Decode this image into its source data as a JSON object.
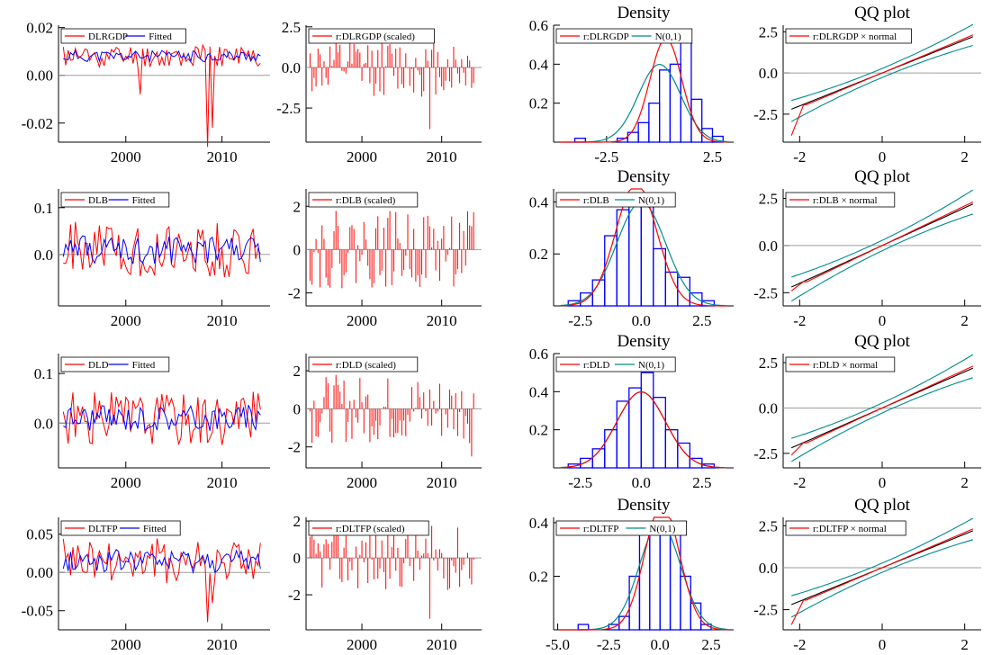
{
  "colors": {
    "red": "#ff0000",
    "blue": "#0000ff",
    "teal": "#008b8b",
    "black": "#000000",
    "gray": "#9e9e9e"
  },
  "chart_data": [
    {
      "type": "line",
      "panel": "fit",
      "xlim": [
        1993,
        2015
      ],
      "ylim": [
        -0.028,
        0.021
      ],
      "xticks": [
        2000,
        2010
      ],
      "yticks": [
        0.02,
        0.0,
        -0.02
      ],
      "ytick_labels": [
        "0.02",
        "0.00",
        "-0.02"
      ],
      "legend": [
        "DLRGDP",
        "Fitted"
      ],
      "seed": 11,
      "amp": 0.004,
      "center": 0.008,
      "dips": [
        [
          2008.5,
          -0.03
        ],
        [
          2009,
          -0.022
        ],
        [
          2001.5,
          -0.008
        ]
      ]
    },
    {
      "type": "bar",
      "panel": "resid",
      "xlim": [
        1993,
        2015
      ],
      "ylim": [
        -4.6,
        2.6
      ],
      "xticks": [
        2000,
        2010
      ],
      "yticks": [
        2.5,
        0.0,
        -2.5
      ],
      "ytick_labels": [
        "2.5",
        "0.0",
        "-2.5"
      ],
      "legend": [
        "r:DLRGDP (scaled)"
      ],
      "seed": 12,
      "spikes": [
        [
          2008.5,
          -3.8
        ]
      ]
    },
    {
      "type": "histogram",
      "panel": "density",
      "title": "Density",
      "xlim": [
        -5,
        3.5
      ],
      "ylim": [
        0,
        0.6
      ],
      "xticks": [
        -2.5,
        2.5
      ],
      "xtick_labels": [
        "-2.5",
        "2.5"
      ],
      "yticks": [
        0.6,
        0.4,
        0.2
      ],
      "ytick_labels": [
        "0.6",
        "0.4",
        "0.2"
      ],
      "legend": [
        "r:DLRGDP",
        "N(0,1)"
      ],
      "bins": [
        -4,
        -3.5,
        -3,
        -2.5,
        -2,
        -1.5,
        -1,
        -0.5,
        0,
        0.5,
        1,
        1.5,
        2,
        2.5,
        3
      ],
      "heights": [
        0.02,
        0,
        0,
        0,
        0.02,
        0.05,
        0.1,
        0.2,
        0.37,
        0.4,
        0.52,
        0.22,
        0.07,
        0.03
      ],
      "kde_sd": 0.75,
      "kde_mu": 0.3
    },
    {
      "type": "line",
      "panel": "qq",
      "title": "QQ plot",
      "xlim": [
        -2.4,
        2.4
      ],
      "ylim": [
        -4.2,
        2.9
      ],
      "xticks": [
        -2,
        0,
        2
      ],
      "xtick_labels": [
        "-2",
        "0",
        "2"
      ],
      "yticks": [
        2.5,
        0.0,
        -2.5
      ],
      "ytick_labels": [
        "2.5",
        "0.0",
        "-2.5"
      ],
      "legend": [
        "r:DLRGDP × normal"
      ],
      "lowtail": -3.7
    },
    {
      "type": "line",
      "panel": "fit",
      "xlim": [
        1993,
        2015
      ],
      "ylim": [
        -0.11,
        0.14
      ],
      "xticks": [
        2000,
        2010
      ],
      "yticks": [
        0.1,
        0.0
      ],
      "ytick_labels": [
        "0.1",
        "0.0"
      ],
      "legend": [
        "DLB",
        "Fitted"
      ],
      "seed": 21,
      "amp": 0.05,
      "center": 0.01,
      "dips": []
    },
    {
      "type": "bar",
      "panel": "resid",
      "xlim": [
        1993,
        2015
      ],
      "ylim": [
        -2.6,
        2.8
      ],
      "xticks": [
        2000,
        2010
      ],
      "yticks": [
        2,
        0,
        -2
      ],
      "ytick_labels": [
        "2",
        "0",
        "-2"
      ],
      "legend": [
        "r:DLB (scaled)"
      ],
      "seed": 22,
      "spikes": []
    },
    {
      "type": "histogram",
      "panel": "density",
      "title": "Density",
      "xlim": [
        -3.6,
        3.8
      ],
      "ylim": [
        0,
        0.45
      ],
      "xticks": [
        -2.5,
        0,
        2.5
      ],
      "xtick_labels": [
        "-2.5",
        "0.0",
        "2.5"
      ],
      "yticks": [
        0.4,
        0.2
      ],
      "ytick_labels": [
        "0.4",
        "0.2"
      ],
      "legend": [
        "r:DLB",
        "N(0,1)"
      ],
      "bins": [
        -3,
        -2.5,
        -2,
        -1.5,
        -1,
        -0.5,
        0,
        0.5,
        1,
        1.5,
        2,
        2.5,
        3
      ],
      "heights": [
        0.02,
        0.05,
        0.1,
        0.27,
        0.37,
        0.4,
        0.42,
        0.22,
        0.13,
        0.11,
        0.05,
        0.02
      ],
      "kde_sd": 0.85,
      "kde_mu": -0.2
    },
    {
      "type": "line",
      "panel": "qq",
      "title": "QQ plot",
      "xlim": [
        -2.4,
        2.4
      ],
      "ylim": [
        -3.2,
        3.0
      ],
      "xticks": [
        -2,
        0,
        2
      ],
      "xtick_labels": [
        "-2",
        "0",
        "2"
      ],
      "yticks": [
        2.5,
        0.0,
        -2.5
      ],
      "ytick_labels": [
        "2.5",
        "0.0",
        "-2.5"
      ],
      "legend": [
        "r:DLB × normal"
      ],
      "lowtail": -2.3
    },
    {
      "type": "line",
      "panel": "fit",
      "xlim": [
        1993,
        2015
      ],
      "ylim": [
        -0.09,
        0.14
      ],
      "xticks": [
        2000,
        2010
      ],
      "yticks": [
        0.1,
        0.0
      ],
      "ytick_labels": [
        "0.1",
        "0.0"
      ],
      "legend": [
        "DLD",
        "Fitted"
      ],
      "seed": 31,
      "amp": 0.045,
      "center": 0.01,
      "dips": []
    },
    {
      "type": "bar",
      "panel": "resid",
      "xlim": [
        1993,
        2015
      ],
      "ylim": [
        -3.1,
        2.9
      ],
      "xticks": [
        2000,
        2010
      ],
      "yticks": [
        2,
        0,
        -2
      ],
      "ytick_labels": [
        "2",
        "0",
        "-2"
      ],
      "legend": [
        "r:DLD (scaled)"
      ],
      "seed": 32,
      "spikes": [
        [
          2013.8,
          -2.5
        ]
      ]
    },
    {
      "type": "histogram",
      "panel": "density",
      "title": "Density",
      "xlim": [
        -3.6,
        3.8
      ],
      "ylim": [
        0,
        0.6
      ],
      "xticks": [
        -2.5,
        0,
        2.5
      ],
      "xtick_labels": [
        "-2.5",
        "0.0",
        "2.5"
      ],
      "yticks": [
        0.6,
        0.4,
        0.2
      ],
      "ytick_labels": [
        "0.6",
        "0.4",
        "0.2"
      ],
      "legend": [
        "r:DLD",
        "N(0,1)"
      ],
      "bins": [
        -3,
        -2.5,
        -2,
        -1.5,
        -1,
        -0.5,
        0,
        0.5,
        1,
        1.5,
        2,
        2.5,
        3
      ],
      "heights": [
        0.02,
        0.05,
        0.1,
        0.2,
        0.35,
        0.42,
        0.5,
        0.37,
        0.2,
        0.13,
        0.05,
        0.02
      ],
      "kde_sd": 1.0,
      "kde_mu": 0.0
    },
    {
      "type": "line",
      "panel": "qq",
      "title": "QQ plot",
      "xlim": [
        -2.4,
        2.4
      ],
      "ylim": [
        -3.3,
        3.0
      ],
      "xticks": [
        -2,
        0,
        2
      ],
      "xtick_labels": [
        "-2",
        "0",
        "2"
      ],
      "yticks": [
        2.5,
        0.0,
        -2.5
      ],
      "ytick_labels": [
        "2.5",
        "0.0",
        "-2.5"
      ],
      "legend": [
        "r:DLD × normal"
      ],
      "lowtail": -2.5
    },
    {
      "type": "line",
      "panel": "fit",
      "xlim": [
        1993,
        2015
      ],
      "ylim": [
        -0.075,
        0.072
      ],
      "xticks": [
        2000,
        2010
      ],
      "yticks": [
        0.05,
        0.0,
        -0.05
      ],
      "ytick_labels": [
        "0.05",
        "0.00",
        "-0.05"
      ],
      "legend": [
        "DLTFP",
        "Fitted"
      ],
      "seed": 41,
      "amp": 0.025,
      "center": 0.015,
      "dips": [
        [
          2008.5,
          -0.065
        ],
        [
          2009,
          -0.04
        ]
      ]
    },
    {
      "type": "bar",
      "panel": "resid",
      "xlim": [
        1993,
        2015
      ],
      "ylim": [
        -3.9,
        2.2
      ],
      "xticks": [
        2000,
        2010
      ],
      "yticks": [
        2,
        0,
        -2
      ],
      "ytick_labels": [
        "2",
        "0",
        "-2"
      ],
      "legend": [
        "r:DLTFP (scaled)"
      ],
      "seed": 42,
      "spikes": [
        [
          2008.5,
          -3.3
        ]
      ]
    },
    {
      "type": "histogram",
      "panel": "density",
      "title": "Density",
      "xlim": [
        -5.2,
        3.6
      ],
      "ylim": [
        0,
        0.42
      ],
      "xticks": [
        -5.0,
        -2.5,
        0,
        2.5
      ],
      "xtick_labels": [
        "-5.0",
        "-2.5",
        "0.0",
        "2.5"
      ],
      "yticks": [
        0.4,
        0.2
      ],
      "ytick_labels": [
        "0.4",
        "0.2"
      ],
      "legend": [
        "r:DLTFP",
        "N(0,1)"
      ],
      "bins": [
        -4,
        -3.5,
        -3,
        -2.5,
        -2,
        -1.5,
        -1,
        -0.5,
        0,
        0.5,
        1,
        1.5,
        2,
        2.5
      ],
      "heights": [
        0.02,
        0,
        0,
        0.02,
        0.05,
        0.2,
        0.4,
        0.4,
        0.4,
        0.36,
        0.2,
        0.1,
        0.02
      ],
      "kde_sd": 0.85,
      "kde_mu": 0.1
    },
    {
      "type": "line",
      "panel": "qq",
      "title": "QQ plot",
      "xlim": [
        -2.4,
        2.4
      ],
      "ylim": [
        -3.7,
        3.0
      ],
      "xticks": [
        -2,
        0,
        2
      ],
      "xtick_labels": [
        "-2",
        "0",
        "2"
      ],
      "yticks": [
        2.5,
        0.0,
        -2.5
      ],
      "ytick_labels": [
        "2.5",
        "0.0",
        "-2.5"
      ],
      "legend": [
        "r:DLTFP × normal"
      ],
      "lowtail": -3.3
    }
  ]
}
